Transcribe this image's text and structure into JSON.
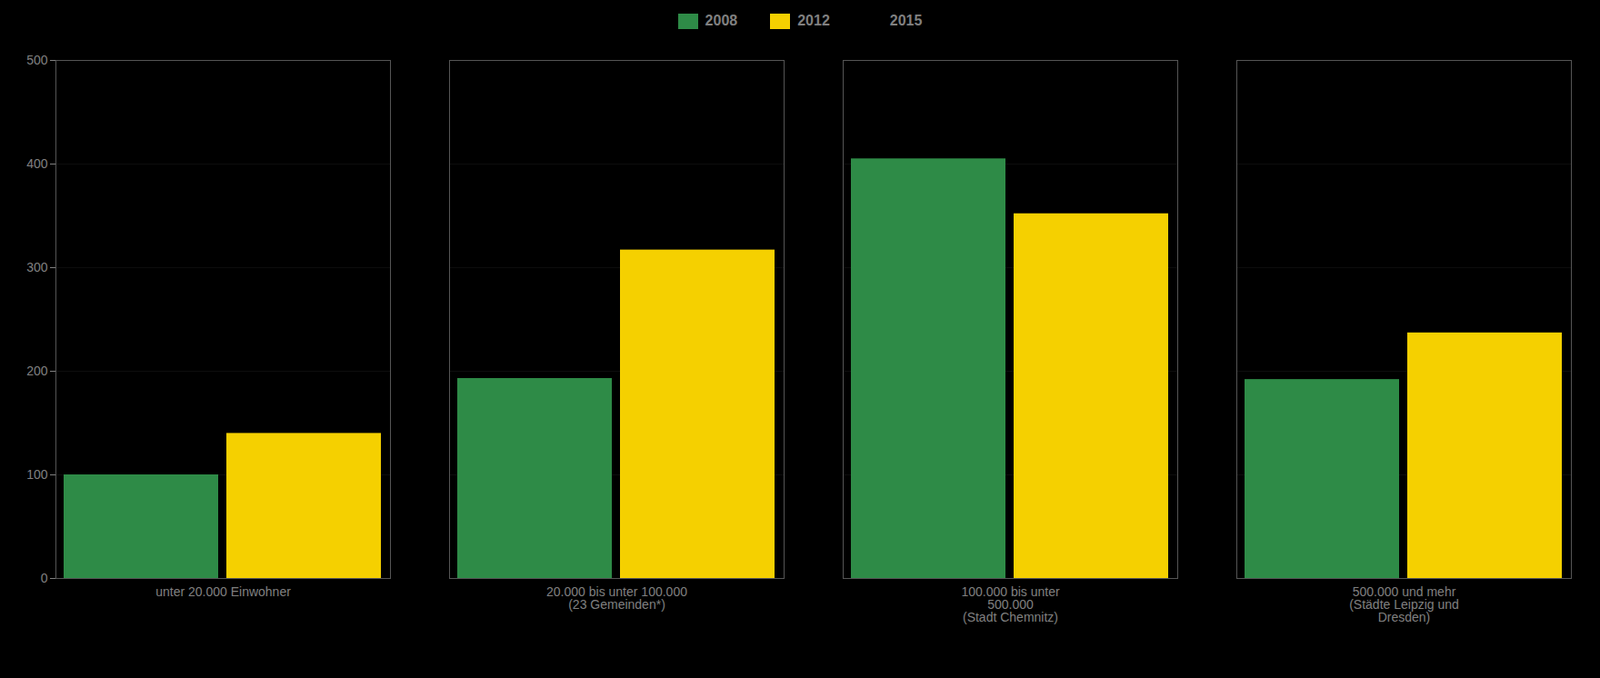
{
  "chart_data": {
    "type": "bar",
    "categories": [
      "unter 20.000 Einwohner",
      "20.000 bis unter 100.000\n(23 Gemeinden*)",
      "100.000 bis unter\n500.000\n(Stadt Chemnitz)",
      "500.000 und mehr\n(Städte Leipzig und\nDresden)"
    ],
    "series": [
      {
        "name": "2008",
        "color": "#2e8b47",
        "values": [
          100,
          193,
          405,
          192
        ]
      },
      {
        "name": "2012",
        "color": "#f5d000",
        "values": [
          140,
          317,
          352,
          237
        ]
      },
      {
        "name": "2015",
        "values": [
          null,
          null,
          null,
          null
        ]
      }
    ],
    "ylim": [
      0,
      500
    ],
    "yticks": [
      0,
      100,
      200,
      300,
      400,
      500
    ],
    "grid": true,
    "legend": "top"
  }
}
